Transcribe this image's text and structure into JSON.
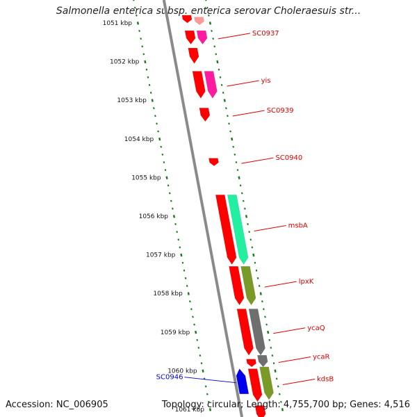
{
  "title": "Salmonella enterica subsp. enterica serovar Choleraesuis str...",
  "footer": {
    "accession": "Accession: NC_006905",
    "summary": "Topology: circular; Length: 4,755,700 bp; Genes: 4,516"
  },
  "colors": {
    "forward_red": "#ff0000",
    "magenta": "#ff1aa0",
    "mint": "#22f0a0",
    "olive": "#7a9a28",
    "gray_gene": "#6f6f6f",
    "reverse_blue": "#0000ee",
    "label_red": "#dd0000",
    "label_blue": "#0000cc",
    "tick_green": "#1a7a1a",
    "backbone_gray": "#8a8a8a"
  },
  "scale": {
    "unit": "kbp",
    "ticks": [
      {
        "kbp": 1051,
        "label": "1051 kbp"
      },
      {
        "kbp": 1052,
        "label": "1052 kbp"
      },
      {
        "kbp": 1053,
        "label": "1053 kbp"
      },
      {
        "kbp": 1054,
        "label": "1054 kbp"
      },
      {
        "kbp": 1055,
        "label": "1055 kbp"
      },
      {
        "kbp": 1056,
        "label": "1056 kbp"
      },
      {
        "kbp": 1057,
        "label": "1057 kbp"
      },
      {
        "kbp": 1058,
        "label": "1058 kbp"
      },
      {
        "kbp": 1059,
        "label": "1059 kbp"
      },
      {
        "kbp": 1060,
        "label": "1060 kbp"
      },
      {
        "kbp": 1061,
        "label": "1061 kbp"
      }
    ]
  },
  "genes": [
    {
      "id": "g1",
      "label": "",
      "start": 1050.8,
      "end": 1051.0,
      "strand": "+",
      "ring": 1,
      "color": "#ff0000"
    },
    {
      "id": "g2",
      "label": "",
      "start": 1050.85,
      "end": 1051.05,
      "strand": "+",
      "ring": 2,
      "color": "#ff9999"
    },
    {
      "id": "g3",
      "label": "",
      "start": 1051.2,
      "end": 1051.55,
      "strand": "+",
      "ring": 1,
      "color": "#ff0000"
    },
    {
      "id": "g4",
      "label": "SC0937",
      "start": 1051.2,
      "end": 1051.55,
      "strand": "+",
      "ring": 2,
      "color": "#ff1aa0"
    },
    {
      "id": "g5",
      "label": "",
      "start": 1051.65,
      "end": 1052.05,
      "strand": "+",
      "ring": 1,
      "color": "#ff0000"
    },
    {
      "id": "g6",
      "label": "",
      "start": 1052.25,
      "end": 1052.95,
      "strand": "+",
      "ring": 1,
      "color": "#ff0000"
    },
    {
      "id": "g7",
      "label": "yis",
      "start": 1052.25,
      "end": 1052.95,
      "strand": "+",
      "ring": 2,
      "color": "#ff1aa0"
    },
    {
      "id": "g8",
      "label": "SC0939",
      "start": 1053.2,
      "end": 1053.55,
      "strand": "+",
      "ring": 1,
      "color": "#ff0000"
    },
    {
      "id": "g9",
      "label": "SC0940",
      "start": 1054.5,
      "end": 1054.7,
      "strand": "+",
      "ring": 1,
      "color": "#ff0000"
    },
    {
      "id": "g10",
      "label": "",
      "start": 1055.45,
      "end": 1057.25,
      "strand": "+",
      "ring": 1,
      "color": "#ff0000"
    },
    {
      "id": "g11",
      "label": "msbA",
      "start": 1055.45,
      "end": 1057.25,
      "strand": "+",
      "ring": 2,
      "color": "#22f0a0"
    },
    {
      "id": "g12",
      "label": "",
      "start": 1057.3,
      "end": 1058.3,
      "strand": "+",
      "ring": 1,
      "color": "#ff0000"
    },
    {
      "id": "g13",
      "label": "lpxK",
      "start": 1057.3,
      "end": 1058.3,
      "strand": "+",
      "ring": 2,
      "color": "#7a9a28"
    },
    {
      "id": "g14",
      "label": "",
      "start": 1058.4,
      "end": 1059.6,
      "strand": "+",
      "ring": 1,
      "color": "#ff0000"
    },
    {
      "id": "g15",
      "label": "ycaQ",
      "start": 1058.4,
      "end": 1059.6,
      "strand": "+",
      "ring": 2,
      "color": "#6f6f6f"
    },
    {
      "id": "g16",
      "label": "",
      "start": 1059.7,
      "end": 1059.9,
      "strand": "+",
      "ring": 1,
      "color": "#ff0000"
    },
    {
      "id": "g17",
      "label": "ycaR",
      "start": 1059.6,
      "end": 1059.9,
      "strand": "+",
      "ring": 2,
      "color": "#6f6f6f"
    },
    {
      "id": "g18",
      "label": "",
      "start": 1059.95,
      "end": 1060.8,
      "strand": "+",
      "ring": 1,
      "color": "#ff0000"
    },
    {
      "id": "g19",
      "label": "kdsB",
      "start": 1059.9,
      "end": 1060.75,
      "strand": "+",
      "ring": 2,
      "color": "#7a9a28"
    },
    {
      "id": "g20",
      "label": "",
      "start": 1060.9,
      "end": 1061.3,
      "strand": "+",
      "ring": 1,
      "color": "#ff0000"
    },
    {
      "id": "g21",
      "label": "SC0946",
      "start": 1059.95,
      "end": 1060.6,
      "strand": "-",
      "ring": -1,
      "color": "#0000ee"
    }
  ]
}
